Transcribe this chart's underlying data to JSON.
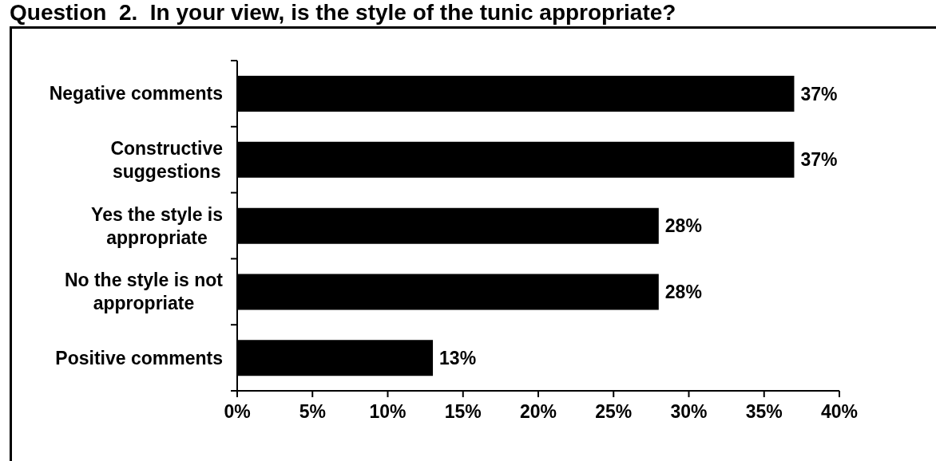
{
  "chart_data": {
    "type": "bar",
    "orientation": "horizontal",
    "title": "Question  2.  In your view, is the style of the tunic appropriate?",
    "categories": [
      "Negative comments",
      "Constructive suggestions",
      "Yes the style is appropriate",
      "No the style is not appropriate",
      "Positive comments"
    ],
    "values": [
      37,
      37,
      28,
      28,
      13
    ],
    "value_labels": [
      "37%",
      "37%",
      "28%",
      "28%",
      "13%"
    ],
    "color": "#000000",
    "xlim": [
      0,
      40
    ],
    "xticks": [
      {
        "value": 0,
        "label": "0%"
      },
      {
        "value": 5,
        "label": "5%"
      },
      {
        "value": 10,
        "label": "10%"
      },
      {
        "value": 15,
        "label": "15%"
      },
      {
        "value": 20,
        "label": "20%"
      },
      {
        "value": 25,
        "label": "25%"
      },
      {
        "value": 30,
        "label": "30%"
      },
      {
        "value": 35,
        "label": "35%"
      },
      {
        "value": 40,
        "label": "40%"
      }
    ]
  }
}
